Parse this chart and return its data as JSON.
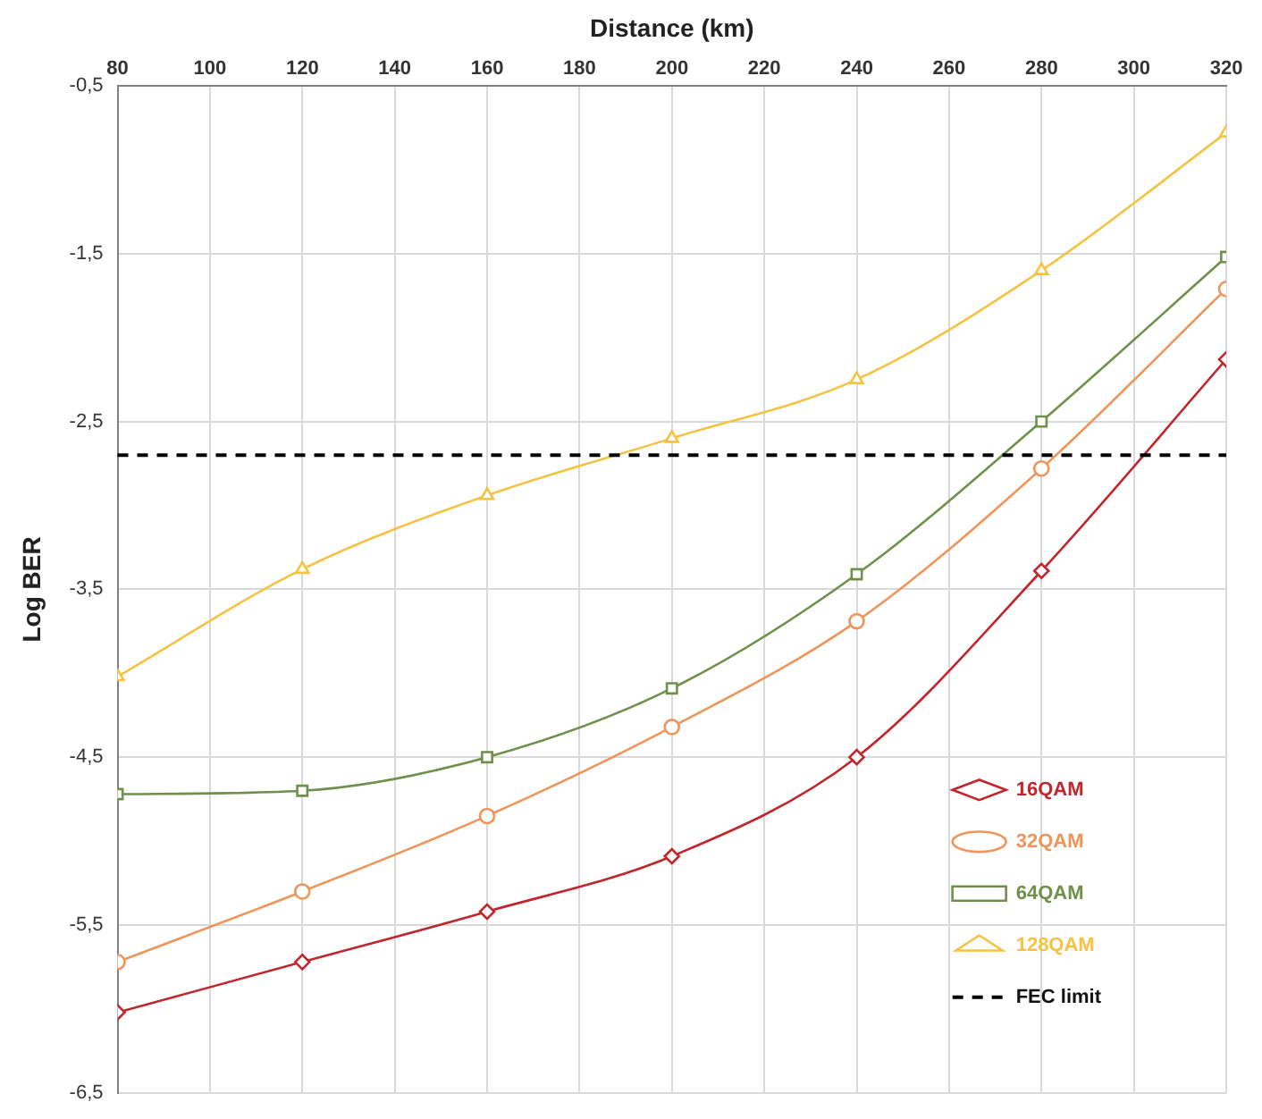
{
  "chart_data": {
    "type": "line",
    "xlabel": "Distance (km)",
    "ylabel": "Log BER",
    "x": [
      80,
      120,
      160,
      200,
      240,
      280,
      320
    ],
    "xlim": [
      80,
      320
    ],
    "xticks": [
      80,
      100,
      120,
      140,
      160,
      180,
      200,
      220,
      240,
      260,
      280,
      300,
      320
    ],
    "ylim": [
      -6.5,
      -0.5
    ],
    "yticks": [
      {
        "value": -6.5,
        "label": "-6,5"
      },
      {
        "value": -5.5,
        "label": "-5,5"
      },
      {
        "value": -4.5,
        "label": "-4,5"
      },
      {
        "value": -3.5,
        "label": "-3,5"
      },
      {
        "value": -2.5,
        "label": "-2,5"
      },
      {
        "value": -1.5,
        "label": "-1,5"
      },
      {
        "value": -0.5,
        "label": "-0,5"
      }
    ],
    "grid": true,
    "legend": "bottom right",
    "line_style": "solid",
    "series": [
      {
        "name": "16QAM",
        "color": "#c0272d",
        "marker": "diamond",
        "values": [
          -6.02,
          -5.72,
          -5.42,
          -5.09,
          -4.5,
          -3.39,
          -2.13
        ]
      },
      {
        "name": "32QAM",
        "color": "#f0955a",
        "marker": "circle",
        "values": [
          -5.72,
          -5.3,
          -4.85,
          -4.32,
          -3.69,
          -2.78,
          -1.71
        ]
      },
      {
        "name": "64QAM",
        "color": "#6f8f4b",
        "marker": "square",
        "values": [
          -4.72,
          -4.7,
          -4.5,
          -4.09,
          -3.41,
          -2.5,
          -1.52
        ]
      },
      {
        "name": "128QAM",
        "color": "#f5c242",
        "marker": "triangle",
        "values": [
          -4.02,
          -3.38,
          -2.94,
          -2.6,
          -2.25,
          -1.6,
          -0.78
        ]
      }
    ],
    "ref_lines": [
      {
        "axis": "y",
        "value": -2.7,
        "label": "FEC limit",
        "color": "#000000",
        "line_style": "dashed"
      }
    ]
  }
}
